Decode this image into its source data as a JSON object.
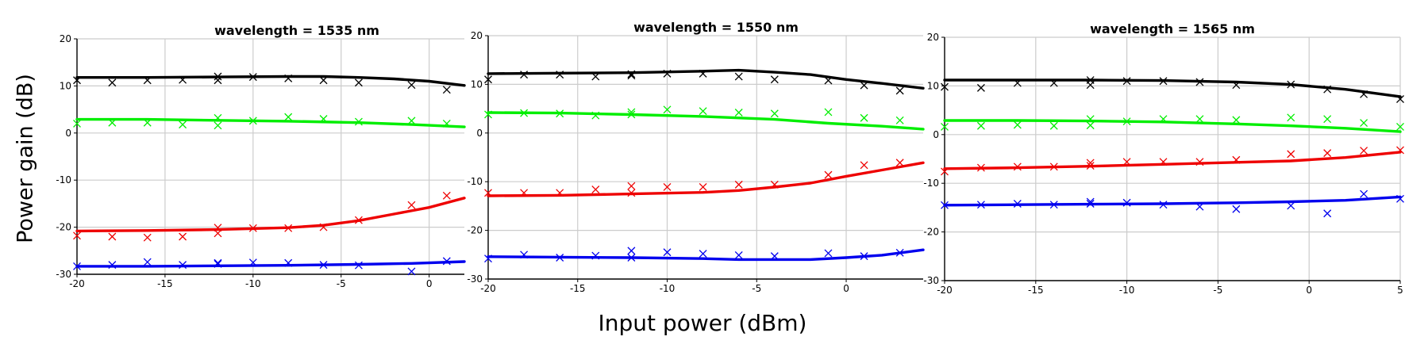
{
  "figure": {
    "ylabel": "Power gain (dB)",
    "xlabel": "Input power (dBm)"
  },
  "chart_data": [
    {
      "type": "line",
      "title": "wavelength = 1535 nm",
      "xlim": [
        -20,
        2
      ],
      "ylim": [
        -30,
        20
      ],
      "xticks": [
        -20,
        -15,
        -10,
        -5,
        0
      ],
      "yticks": [
        20,
        10,
        0,
        -10,
        -20,
        -30
      ],
      "grid": true,
      "series": [
        {
          "color": "#000000",
          "kind": "model",
          "x": [
            -20,
            -16,
            -12,
            -8,
            -6,
            -4,
            -2,
            0,
            2
          ],
          "y": [
            11.8,
            11.8,
            11.9,
            12.0,
            12.0,
            11.8,
            11.5,
            11.0,
            10.1
          ]
        },
        {
          "color": "#000000",
          "kind": "measured",
          "x": [
            -20,
            -18,
            -16,
            -14,
            -12,
            -12,
            -10,
            -8,
            -6,
            -4,
            -1,
            1
          ],
          "y": [
            11.2,
            10.7,
            11.2,
            11.3,
            11.2,
            12.0,
            11.9,
            11.6,
            11.2,
            10.7,
            10.2,
            9.2
          ]
        },
        {
          "color": "#00ee00",
          "kind": "model",
          "x": [
            -20,
            -16,
            -12,
            -8,
            -4,
            -1,
            2
          ],
          "y": [
            2.9,
            2.9,
            2.7,
            2.5,
            2.2,
            1.8,
            1.3
          ]
        },
        {
          "color": "#00ee00",
          "kind": "measured",
          "x": [
            -20,
            -18,
            -16,
            -14,
            -12,
            -12,
            -10,
            -8,
            -6,
            -4,
            -1,
            1
          ],
          "y": [
            2.0,
            2.2,
            2.2,
            1.8,
            1.6,
            3.2,
            2.6,
            3.4,
            3.0,
            2.4,
            2.6,
            2.0
          ]
        },
        {
          "color": "#ee0000",
          "kind": "model",
          "x": [
            -20,
            -16,
            -12,
            -8,
            -6,
            -4,
            -2,
            0,
            2
          ],
          "y": [
            -20.8,
            -20.7,
            -20.5,
            -20.1,
            -19.6,
            -18.6,
            -17.2,
            -15.8,
            -13.8
          ]
        },
        {
          "color": "#ee0000",
          "kind": "measured",
          "x": [
            -20,
            -18,
            -16,
            -14,
            -12,
            -12,
            -10,
            -8,
            -6,
            -4,
            -1,
            1
          ],
          "y": [
            -21.8,
            -22.0,
            -22.2,
            -22.0,
            -20.1,
            -21.3,
            -20.2,
            -20.2,
            -20.0,
            -18.5,
            -15.3,
            -13.3
          ]
        },
        {
          "color": "#0000ee",
          "kind": "model",
          "x": [
            -20,
            -16,
            -12,
            -8,
            -4,
            -1,
            2
          ],
          "y": [
            -28.3,
            -28.3,
            -28.2,
            -28.1,
            -27.9,
            -27.7,
            -27.3
          ]
        },
        {
          "color": "#0000ee",
          "kind": "measured",
          "x": [
            -20,
            -18,
            -16,
            -14,
            -12,
            -12,
            -10,
            -8,
            -6,
            -4,
            -1,
            1
          ],
          "y": [
            -28.3,
            -28.0,
            -27.4,
            -28.0,
            -27.6,
            -27.8,
            -27.5,
            -27.6,
            -28.0,
            -28.1,
            -29.4,
            -27.2
          ]
        }
      ]
    },
    {
      "type": "line",
      "title": "wavelength = 1550 nm",
      "xlim": [
        -20,
        4.3
      ],
      "ylim": [
        -30,
        20
      ],
      "xticks": [
        -20,
        -15,
        -10,
        -5,
        0
      ],
      "yticks": [
        20,
        10,
        0,
        -10,
        -20,
        -30
      ],
      "grid": true,
      "series": [
        {
          "color": "#000000",
          "kind": "model",
          "x": [
            -20,
            -16,
            -12,
            -8,
            -6,
            -4,
            -2,
            0,
            2,
            4.3
          ],
          "y": [
            12.2,
            12.3,
            12.4,
            12.7,
            12.9,
            12.5,
            12.0,
            11.0,
            10.2,
            9.2
          ]
        },
        {
          "color": "#000000",
          "kind": "measured",
          "x": [
            -20,
            -18,
            -16,
            -14,
            -12,
            -12,
            -10,
            -8,
            -6,
            -4,
            -1,
            1,
            3
          ],
          "y": [
            11.0,
            12.0,
            12.0,
            11.6,
            12.1,
            11.8,
            12.2,
            12.2,
            11.6,
            11.0,
            10.8,
            9.8,
            8.7
          ]
        },
        {
          "color": "#00ee00",
          "kind": "model",
          "x": [
            -20,
            -16,
            -12,
            -8,
            -4,
            -1,
            2,
            4.3
          ],
          "y": [
            4.2,
            4.1,
            3.8,
            3.4,
            2.8,
            2.0,
            1.4,
            0.8
          ]
        },
        {
          "color": "#00ee00",
          "kind": "measured",
          "x": [
            -20,
            -18,
            -16,
            -14,
            -12,
            -12,
            -10,
            -8,
            -6,
            -4,
            -1,
            1,
            3
          ],
          "y": [
            3.8,
            4.1,
            4.0,
            3.6,
            3.8,
            4.3,
            4.8,
            4.5,
            4.2,
            4.0,
            4.3,
            3.1,
            2.6
          ]
        },
        {
          "color": "#ee0000",
          "kind": "model",
          "x": [
            -20,
            -16,
            -12,
            -8,
            -6,
            -4,
            -2,
            0,
            2,
            4.3
          ],
          "y": [
            -12.9,
            -12.8,
            -12.5,
            -12.2,
            -11.8,
            -11.1,
            -10.3,
            -8.9,
            -7.6,
            -6.1
          ]
        },
        {
          "color": "#ee0000",
          "kind": "measured",
          "x": [
            -20,
            -18,
            -16,
            -14,
            -12,
            -12,
            -10,
            -8,
            -6,
            -4,
            -1,
            1,
            3
          ],
          "y": [
            -12.3,
            -12.3,
            -12.3,
            -11.6,
            -12.3,
            -10.9,
            -11.1,
            -11.1,
            -10.6,
            -10.6,
            -8.6,
            -6.6,
            -6.1
          ]
        },
        {
          "color": "#0000ee",
          "kind": "model",
          "x": [
            -20,
            -16,
            -12,
            -8,
            -6,
            -4,
            -2,
            0,
            2,
            4.3
          ],
          "y": [
            -25.4,
            -25.5,
            -25.6,
            -25.8,
            -26.0,
            -26.0,
            -26.0,
            -25.6,
            -25.1,
            -24.0
          ]
        },
        {
          "color": "#0000ee",
          "kind": "measured",
          "x": [
            -20,
            -18,
            -16,
            -14,
            -12,
            -12,
            -10,
            -8,
            -6,
            -4,
            -1,
            1,
            3
          ],
          "y": [
            -25.8,
            -25.0,
            -25.6,
            -25.2,
            -24.2,
            -25.6,
            -24.5,
            -24.8,
            -25.1,
            -25.3,
            -24.7,
            -25.3,
            -24.6
          ]
        }
      ]
    },
    {
      "type": "line",
      "title": "wavelength = 1565 nm",
      "xlim": [
        -20,
        5
      ],
      "ylim": [
        -30,
        20
      ],
      "xticks": [
        -20,
        -15,
        -10,
        -5,
        0,
        5
      ],
      "yticks": [
        20,
        10,
        0,
        -10,
        -20,
        -30
      ],
      "grid": true,
      "series": [
        {
          "color": "#000000",
          "kind": "model",
          "x": [
            -20,
            -16,
            -12,
            -8,
            -4,
            -1,
            2,
            5
          ],
          "y": [
            11.2,
            11.2,
            11.2,
            11.1,
            10.8,
            10.3,
            9.3,
            7.8
          ]
        },
        {
          "color": "#000000",
          "kind": "measured",
          "x": [
            -20,
            -18,
            -16,
            -14,
            -12,
            -12,
            -10,
            -8,
            -6,
            -4,
            -1,
            1,
            3,
            5
          ],
          "y": [
            9.8,
            9.6,
            10.6,
            10.6,
            11.2,
            10.2,
            11.0,
            11.0,
            10.8,
            10.2,
            10.3,
            9.3,
            8.3,
            7.3
          ]
        },
        {
          "color": "#00ee00",
          "kind": "model",
          "x": [
            -20,
            -16,
            -12,
            -8,
            -4,
            -1,
            2,
            5
          ],
          "y": [
            2.9,
            2.9,
            2.8,
            2.6,
            2.2,
            1.8,
            1.3,
            0.6
          ]
        },
        {
          "color": "#00ee00",
          "kind": "measured",
          "x": [
            -20,
            -18,
            -16,
            -14,
            -12,
            -12,
            -10,
            -8,
            -6,
            -4,
            -1,
            1,
            3,
            5
          ],
          "y": [
            1.6,
            1.8,
            2.0,
            1.8,
            1.9,
            3.2,
            2.7,
            3.2,
            3.2,
            3.0,
            3.5,
            3.2,
            2.4,
            1.6
          ]
        },
        {
          "color": "#ee0000",
          "kind": "model",
          "x": [
            -20,
            -16,
            -12,
            -8,
            -4,
            -1,
            2,
            5
          ],
          "y": [
            -7.0,
            -6.8,
            -6.5,
            -6.1,
            -5.7,
            -5.4,
            -4.7,
            -3.6
          ]
        },
        {
          "color": "#ee0000",
          "kind": "measured",
          "x": [
            -20,
            -18,
            -16,
            -14,
            -12,
            -12,
            -10,
            -8,
            -6,
            -4,
            -1,
            1,
            3,
            5
          ],
          "y": [
            -7.6,
            -6.8,
            -6.6,
            -6.6,
            -6.4,
            -5.8,
            -5.6,
            -5.6,
            -5.6,
            -5.2,
            -4.0,
            -3.8,
            -3.3,
            -3.2
          ]
        },
        {
          "color": "#0000ee",
          "kind": "model",
          "x": [
            -20,
            -16,
            -12,
            -8,
            -4,
            -1,
            2,
            5
          ],
          "y": [
            -14.5,
            -14.4,
            -14.3,
            -14.2,
            -14.0,
            -13.8,
            -13.5,
            -12.8
          ]
        },
        {
          "color": "#0000ee",
          "kind": "measured",
          "x": [
            -20,
            -18,
            -16,
            -14,
            -12,
            -12,
            -10,
            -8,
            -6,
            -4,
            -1,
            1,
            3,
            5
          ],
          "y": [
            -14.5,
            -14.4,
            -14.2,
            -14.4,
            -13.8,
            -14.2,
            -14.0,
            -14.4,
            -14.8,
            -15.3,
            -14.6,
            -16.2,
            -12.2,
            -13.2
          ]
        }
      ]
    }
  ]
}
